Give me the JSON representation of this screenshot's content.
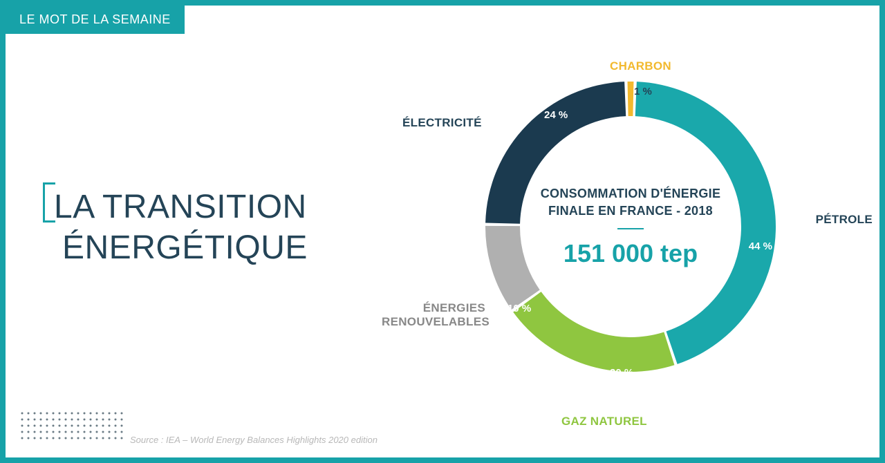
{
  "badge": "LE MOT DE LA SEMAINE",
  "title": {
    "line1": "LA TRANSITION",
    "line2": "ÉNERGÉTIQUE"
  },
  "chart": {
    "type": "donut",
    "center": {
      "title_l1": "CONSOMMATION D'ÉNERGIE",
      "title_l2": "FINALE EN FRANCE - 2018",
      "value": "151 000 tep"
    },
    "ring_outer_r": 210,
    "ring_inner_r": 160,
    "gap_deg": 1.2,
    "background_color": "#ffffff",
    "segments": [
      {
        "key": "petrole",
        "label": "PÉTROLE",
        "pct": 44,
        "color": "#1aa8ab",
        "pct_text": "44 %"
      },
      {
        "key": "gaz",
        "label": "GAZ NATUREL",
        "pct": 20,
        "color": "#8fc640",
        "pct_text": "20 %"
      },
      {
        "key": "renouv",
        "label": "ÉNERGIES\nRENOUVELABLES",
        "pct": 10,
        "color": "#b0b0b0",
        "pct_text": "10 %"
      },
      {
        "key": "elec",
        "label": "ÉLECTRICITÉ",
        "pct": 24,
        "color": "#1b3a4f",
        "pct_text": "24 %"
      },
      {
        "key": "charbon",
        "label": "CHARBON",
        "pct": 1,
        "color": "#f2b92e",
        "pct_text": "1 %",
        "label_color": "#f2b92e"
      }
    ],
    "petrole_pct_color": "#ffffff"
  },
  "source": "Source : IEA – World Energy Balances Highlights 2020 edition",
  "dots": {
    "rows": 5,
    "cols": 17,
    "gap": 9,
    "r": 1.5,
    "color": "#6a7b85"
  },
  "colors": {
    "frame": "#17a2a8",
    "title": "#244457",
    "accent": "#17a2a8"
  }
}
